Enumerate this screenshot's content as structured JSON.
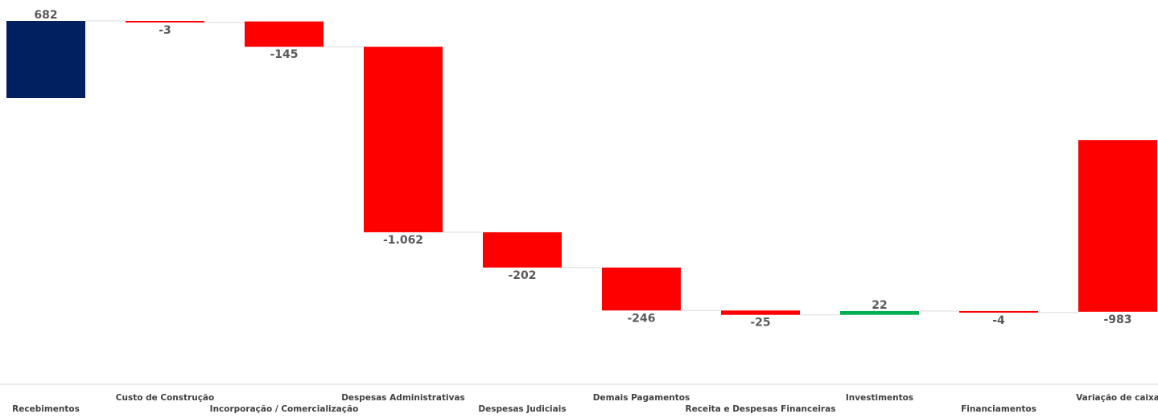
{
  "chart_data": {
    "type": "waterfall",
    "categories": [
      "Recebimentos",
      "Custo de Construção",
      "Incorporação / Comercialização",
      "Despesas Administrativas",
      "Despesas Judiciais",
      "Demais Pagamentos",
      "Receita e Despesas Financeiras",
      "Investimentos",
      "Financiamentos",
      "Variação de caixa"
    ],
    "values": [
      682,
      -3,
      -145,
      -1062,
      -202,
      -246,
      -25,
      22,
      -4,
      -983
    ],
    "value_labels": [
      "682",
      "-3",
      "-145",
      "-1.062",
      "-202",
      "-246",
      "-25",
      "22",
      "-4",
      "-983"
    ],
    "bar_kinds": [
      "total",
      "delta",
      "delta",
      "delta",
      "delta",
      "delta",
      "delta",
      "delta",
      "delta",
      "total"
    ],
    "colors": {
      "total_start": "#002060",
      "decrease": "#ff0000",
      "increase": "#00b050",
      "connector": "#d9d9d9",
      "axis": "#d9d9d9",
      "label": "#595959"
    },
    "title": "",
    "xlabel": "",
    "ylabel": "",
    "ylim": [
      -1000,
      700
    ],
    "grid": false,
    "legend": "none"
  }
}
